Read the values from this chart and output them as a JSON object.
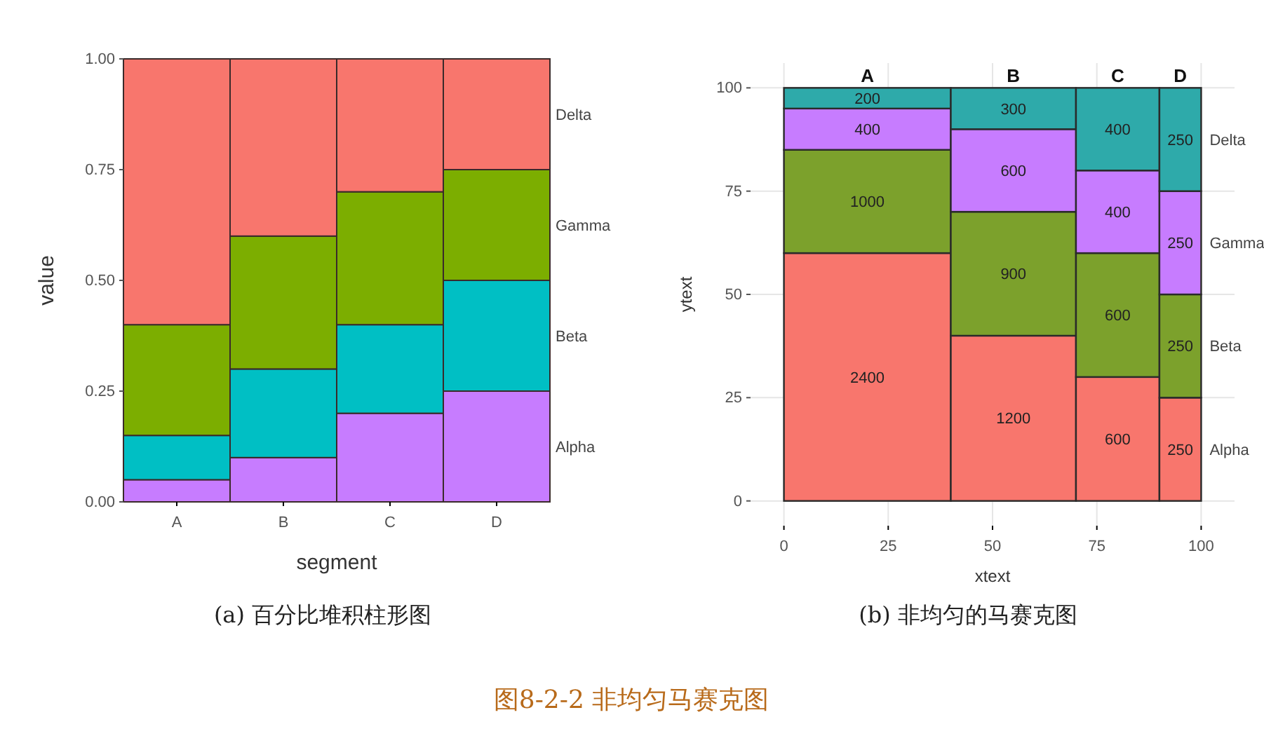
{
  "chart_data": [
    {
      "type": "bar",
      "title": "(a) 百分比堆积柱形图",
      "xlabel": "segment",
      "ylabel": "value",
      "categories": [
        "A",
        "B",
        "C",
        "D"
      ],
      "stacked": true,
      "legend": false,
      "series": [
        {
          "name": "Alpha",
          "color": "#c77cff",
          "values": [
            0.05,
            0.1,
            0.2,
            0.25
          ]
        },
        {
          "name": "Beta",
          "color": "#00bfc4",
          "values": [
            0.1,
            0.2,
            0.2,
            0.25
          ]
        },
        {
          "name": "Gamma",
          "color": "#7cae00",
          "values": [
            0.25,
            0.3,
            0.3,
            0.25
          ]
        },
        {
          "name": "Delta",
          "color": "#f8766d",
          "values": [
            0.6,
            0.4,
            0.3,
            0.25
          ]
        }
      ],
      "ylim": [
        0,
        1
      ],
      "yticks": [
        {
          "value": 0,
          "label": "0.00"
        },
        {
          "value": 0.25,
          "label": "0.25"
        },
        {
          "value": 0.5,
          "label": "0.50"
        },
        {
          "value": 0.75,
          "label": "0.75"
        },
        {
          "value": 1,
          "label": "1.00"
        }
      ]
    },
    {
      "type": "bar",
      "title": "(b) 非均匀的马赛克图",
      "xlabel": "xtext",
      "ylabel": "ytext",
      "x": [
        20,
        55,
        80,
        95
      ],
      "stacked": true,
      "legend": false,
      "grid": true,
      "series": [
        {
          "name": "Alpha",
          "color": "#f8766d",
          "values": [
            60,
            40,
            30,
            25
          ]
        },
        {
          "name": "Beta",
          "color": "#7ca12c",
          "values": [
            25,
            30,
            30,
            25
          ]
        },
        {
          "name": "Gamma",
          "color": "#c77cff",
          "values": [
            10,
            20,
            20,
            25
          ]
        },
        {
          "name": "Delta",
          "color": "#2eaaaa",
          "values": [
            5,
            10,
            20,
            25
          ]
        }
      ],
      "xlim": [
        -8,
        108
      ],
      "ylim": [
        -6,
        106
      ],
      "xticks": [
        0,
        25,
        50,
        75,
        100
      ],
      "yticks": [
        0,
        25,
        50,
        75,
        100
      ],
      "annotations": [
        "图8-2-2 非均匀马赛克图",
        "A",
        "B",
        "C",
        "D",
        "2400",
        "1000",
        "400",
        "200",
        "1200",
        "900",
        "600",
        "300",
        "600",
        "600",
        "400",
        "400",
        "250",
        "250",
        "250",
        "250"
      ]
    }
  ]
}
